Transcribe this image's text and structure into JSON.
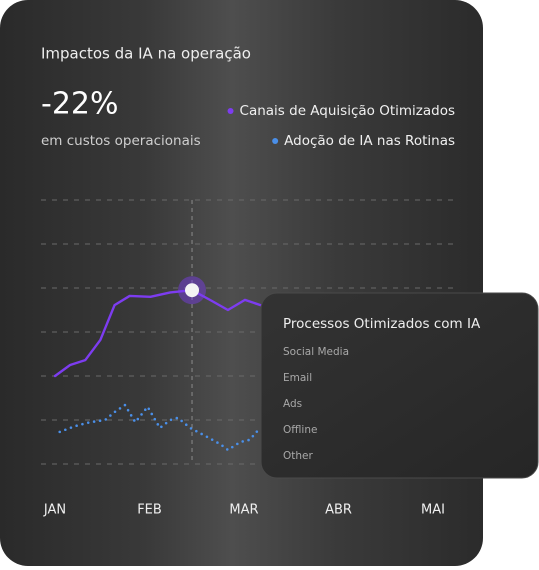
{
  "title": "Impactos da IA na operação",
  "kpi": {
    "value": "-22%",
    "caption": "em custos operacionais"
  },
  "chart_data": {
    "type": "line",
    "xlim": [
      0,
      4
    ],
    "xticks": [
      {
        "value": 0,
        "label": "JAN"
      },
      {
        "value": 1,
        "label": "FEB"
      },
      {
        "value": 2,
        "label": "MAR"
      },
      {
        "value": 3,
        "label": "ABR"
      },
      {
        "value": 4,
        "label": "MAI"
      }
    ],
    "ylim": [
      0,
      6
    ],
    "yticks": [
      0,
      1,
      2,
      3,
      4,
      5,
      6
    ],
    "grid": true,
    "highlight": {
      "series": 0,
      "index": 8
    },
    "series": [
      {
        "name": "Canais de Aquisição Otimizados",
        "color": "#7d3cf0",
        "style": "solid",
        "x": [
          0,
          0.16,
          0.32,
          0.48,
          0.63,
          0.79,
          1.01,
          1.22,
          1.45,
          1.64,
          1.83,
          2.01,
          2.19
        ],
        "values": [
          2,
          2.25,
          2.36,
          2.82,
          3.61,
          3.82,
          3.8,
          3.9,
          3.95,
          3.73,
          3.5,
          3.73,
          3.6
        ]
      },
      {
        "name": "Adoção de IA nas Rotinas",
        "color": "#4a8fe8",
        "style": "dotted",
        "x": [
          0.05,
          0.21,
          0.37,
          0.53,
          0.63,
          0.74,
          0.85,
          0.98,
          1.11,
          1.22,
          1.3,
          1.43,
          1.59,
          1.75,
          1.83,
          1.96,
          2.06,
          2.17
        ],
        "values": [
          0.73,
          0.86,
          0.95,
          1.0,
          1.18,
          1.34,
          0.95,
          1.3,
          0.82,
          1.0,
          1.05,
          0.82,
          0.64,
          0.45,
          0.32,
          0.5,
          0.55,
          0.82
        ]
      }
    ]
  },
  "panel": {
    "title": "Processos Otimizados com IA",
    "items": [
      "Social Media",
      "Email",
      "Ads",
      "Offline",
      "Other"
    ]
  }
}
